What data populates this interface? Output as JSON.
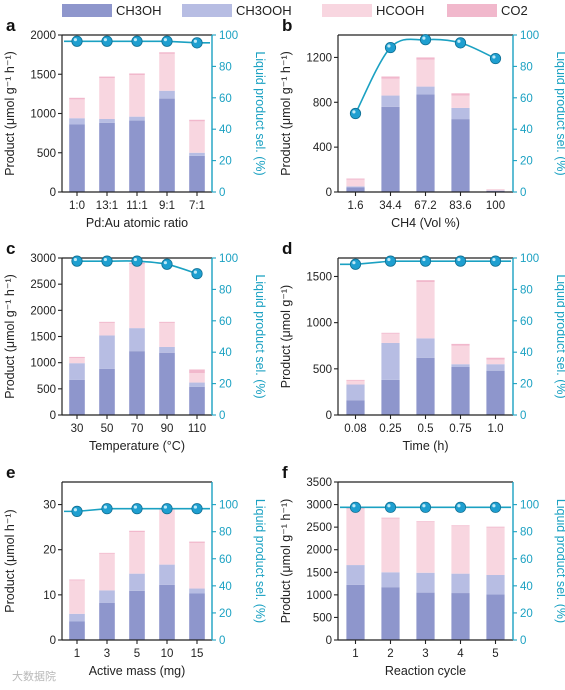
{
  "legend": [
    {
      "label": "CH3OH",
      "color": "#8e96cc"
    },
    {
      "label": "CH3OOH",
      "color": "#b7bde3"
    },
    {
      "label": "HCOOH",
      "color": "#f8d6e0"
    },
    {
      "label": "CO2",
      "color": "#f1b8cc"
    }
  ],
  "colors": {
    "line": "#1ba1c2",
    "marker": "#1e9fd0",
    "axis": "#222222"
  },
  "chart_data": [
    {
      "panel": "a",
      "type": "bar",
      "xlabel": "Pd:Au atomic ratio",
      "ylabel": "Product (μmol g⁻¹ h⁻¹)",
      "y2label": "Liquid product sel. (%)",
      "categories": [
        "1:0",
        "13:1",
        "11:1",
        "9:1",
        "7:1"
      ],
      "ylim": [
        0,
        2000
      ],
      "yticks": [
        0,
        500,
        1000,
        1500,
        2000
      ],
      "y2lim": [
        0,
        100
      ],
      "y2ticks": [
        0,
        20,
        40,
        60,
        80,
        100
      ],
      "series": [
        {
          "name": "CH3OH",
          "values": [
            860,
            880,
            910,
            1190,
            460
          ]
        },
        {
          "name": "CH3OOH",
          "values": [
            80,
            50,
            50,
            100,
            40
          ]
        },
        {
          "name": "HCOOH",
          "values": [
            240,
            520,
            530,
            470,
            400
          ]
        },
        {
          "name": "CO2",
          "values": [
            20,
            20,
            20,
            20,
            20
          ]
        }
      ],
      "selectivity": [
        96,
        96,
        96,
        96,
        95
      ],
      "curve": "flat"
    },
    {
      "panel": "b",
      "type": "bar",
      "xlabel": "CH4 (Vol %)",
      "ylabel": "Product (μmol g⁻¹ h⁻¹)",
      "y2label": "Liquid product sel. (%)",
      "categories": [
        "1.6",
        "34.4",
        "67.2",
        "83.6",
        "100"
      ],
      "ylim": [
        0,
        1400
      ],
      "yticks": [
        0,
        400,
        800,
        1200
      ],
      "y2lim": [
        0,
        100
      ],
      "y2ticks": [
        0,
        20,
        40,
        60,
        80,
        100
      ],
      "series": [
        {
          "name": "CH3OH",
          "values": [
            40,
            760,
            870,
            650,
            10
          ]
        },
        {
          "name": "CH3OOH",
          "values": [
            10,
            100,
            70,
            100,
            3
          ]
        },
        {
          "name": "HCOOH",
          "values": [
            60,
            150,
            240,
            110,
            10
          ]
        },
        {
          "name": "CO2",
          "values": [
            10,
            20,
            20,
            20,
            2
          ]
        }
      ],
      "selectivity": [
        50,
        92,
        97,
        95,
        85
      ],
      "curve": "peak"
    },
    {
      "panel": "c",
      "type": "bar",
      "xlabel": "Temperature (°C)",
      "ylabel": "Product (μmol g⁻¹ h⁻¹)",
      "y2label": "Liquid product sel. (%)",
      "categories": [
        "30",
        "50",
        "70",
        "90",
        "110"
      ],
      "ylim": [
        0,
        3000
      ],
      "yticks": [
        0,
        500,
        1000,
        1500,
        2000,
        2500,
        3000
      ],
      "y2lim": [
        0,
        100
      ],
      "y2ticks": [
        0,
        20,
        40,
        60,
        80,
        100
      ],
      "series": [
        {
          "name": "CH3OH",
          "values": [
            670,
            880,
            1220,
            1190,
            540
          ]
        },
        {
          "name": "CH3OOH",
          "values": [
            320,
            640,
            440,
            110,
            80
          ]
        },
        {
          "name": "HCOOH",
          "values": [
            100,
            240,
            1220,
            460,
            180
          ]
        },
        {
          "name": "CO2",
          "values": [
            20,
            20,
            30,
            20,
            70
          ]
        }
      ],
      "selectivity": [
        98,
        98,
        98,
        96,
        90
      ],
      "curve": "smooth"
    },
    {
      "panel": "d",
      "type": "bar",
      "xlabel": "Time (h)",
      "ylabel": "Product (μmol g⁻¹)",
      "y2label": "Liquid product sel. (%)",
      "categories": [
        "0.08",
        "0.25",
        "0.5",
        "0.75",
        "1.0"
      ],
      "ylim": [
        0,
        1700
      ],
      "yticks": [
        0,
        500,
        1000,
        1500
      ],
      "y2lim": [
        0,
        100
      ],
      "y2ticks": [
        0,
        20,
        40,
        60,
        80,
        100
      ],
      "series": [
        {
          "name": "CH3OH",
          "values": [
            160,
            380,
            620,
            520,
            480
          ]
        },
        {
          "name": "CH3OOH",
          "values": [
            170,
            400,
            210,
            30,
            70
          ]
        },
        {
          "name": "HCOOH",
          "values": [
            40,
            100,
            610,
            200,
            50
          ]
        },
        {
          "name": "CO2",
          "values": [
            10,
            10,
            20,
            20,
            20
          ]
        }
      ],
      "selectivity": [
        96,
        98,
        98,
        98,
        98
      ],
      "curve": "flat"
    },
    {
      "panel": "e",
      "type": "bar",
      "xlabel": "Active mass (mg)",
      "ylabel": "Product (μmol h⁻¹)",
      "y2label": "Liquid product sel. (%)",
      "categories": [
        "1",
        "3",
        "5",
        "10",
        "15"
      ],
      "ylim": [
        0,
        35
      ],
      "yticks": [
        0,
        10,
        20,
        30
      ],
      "y2lim": [
        0,
        116.7
      ],
      "y2ticks": [
        0,
        20,
        40,
        60,
        80,
        100
      ],
      "series": [
        {
          "name": "CH3OH",
          "values": [
            4.1,
            8.2,
            10.9,
            12.2,
            10.3
          ]
        },
        {
          "name": "CH3OOH",
          "values": [
            1.7,
            2.8,
            3.8,
            4.5,
            1.1
          ]
        },
        {
          "name": "HCOOH",
          "values": [
            7.4,
            8.1,
            9.2,
            12.2,
            10.1
          ]
        },
        {
          "name": "CO2",
          "values": [
            0.2,
            0.2,
            0.3,
            0.3,
            0.3
          ]
        }
      ],
      "selectivity": [
        95,
        97,
        97,
        97,
        97
      ],
      "curve": "flat"
    },
    {
      "panel": "f",
      "type": "bar",
      "xlabel": "Reaction cycle",
      "ylabel": "Product (μmol g⁻¹ h⁻¹)",
      "y2label": "Liquid product sel. (%)",
      "categories": [
        "1",
        "2",
        "3",
        "4",
        "5"
      ],
      "ylim": [
        0,
        3500
      ],
      "yticks": [
        0,
        500,
        1000,
        1500,
        2000,
        2500,
        3000,
        3500
      ],
      "y2lim": [
        0,
        116.7
      ],
      "y2ticks": [
        0,
        20,
        40,
        60,
        80,
        100
      ],
      "series": [
        {
          "name": "CH3OH",
          "values": [
            1220,
            1170,
            1050,
            1040,
            1010
          ]
        },
        {
          "name": "CH3OOH",
          "values": [
            440,
            330,
            440,
            430,
            430
          ]
        },
        {
          "name": "HCOOH",
          "values": [
            1240,
            1190,
            1120,
            1050,
            1050
          ]
        },
        {
          "name": "CO2",
          "values": [
            20,
            20,
            20,
            20,
            20
          ]
        }
      ],
      "selectivity": [
        98,
        98,
        98,
        98,
        98
      ],
      "curve": "flat"
    }
  ],
  "watermark": "大数据院"
}
